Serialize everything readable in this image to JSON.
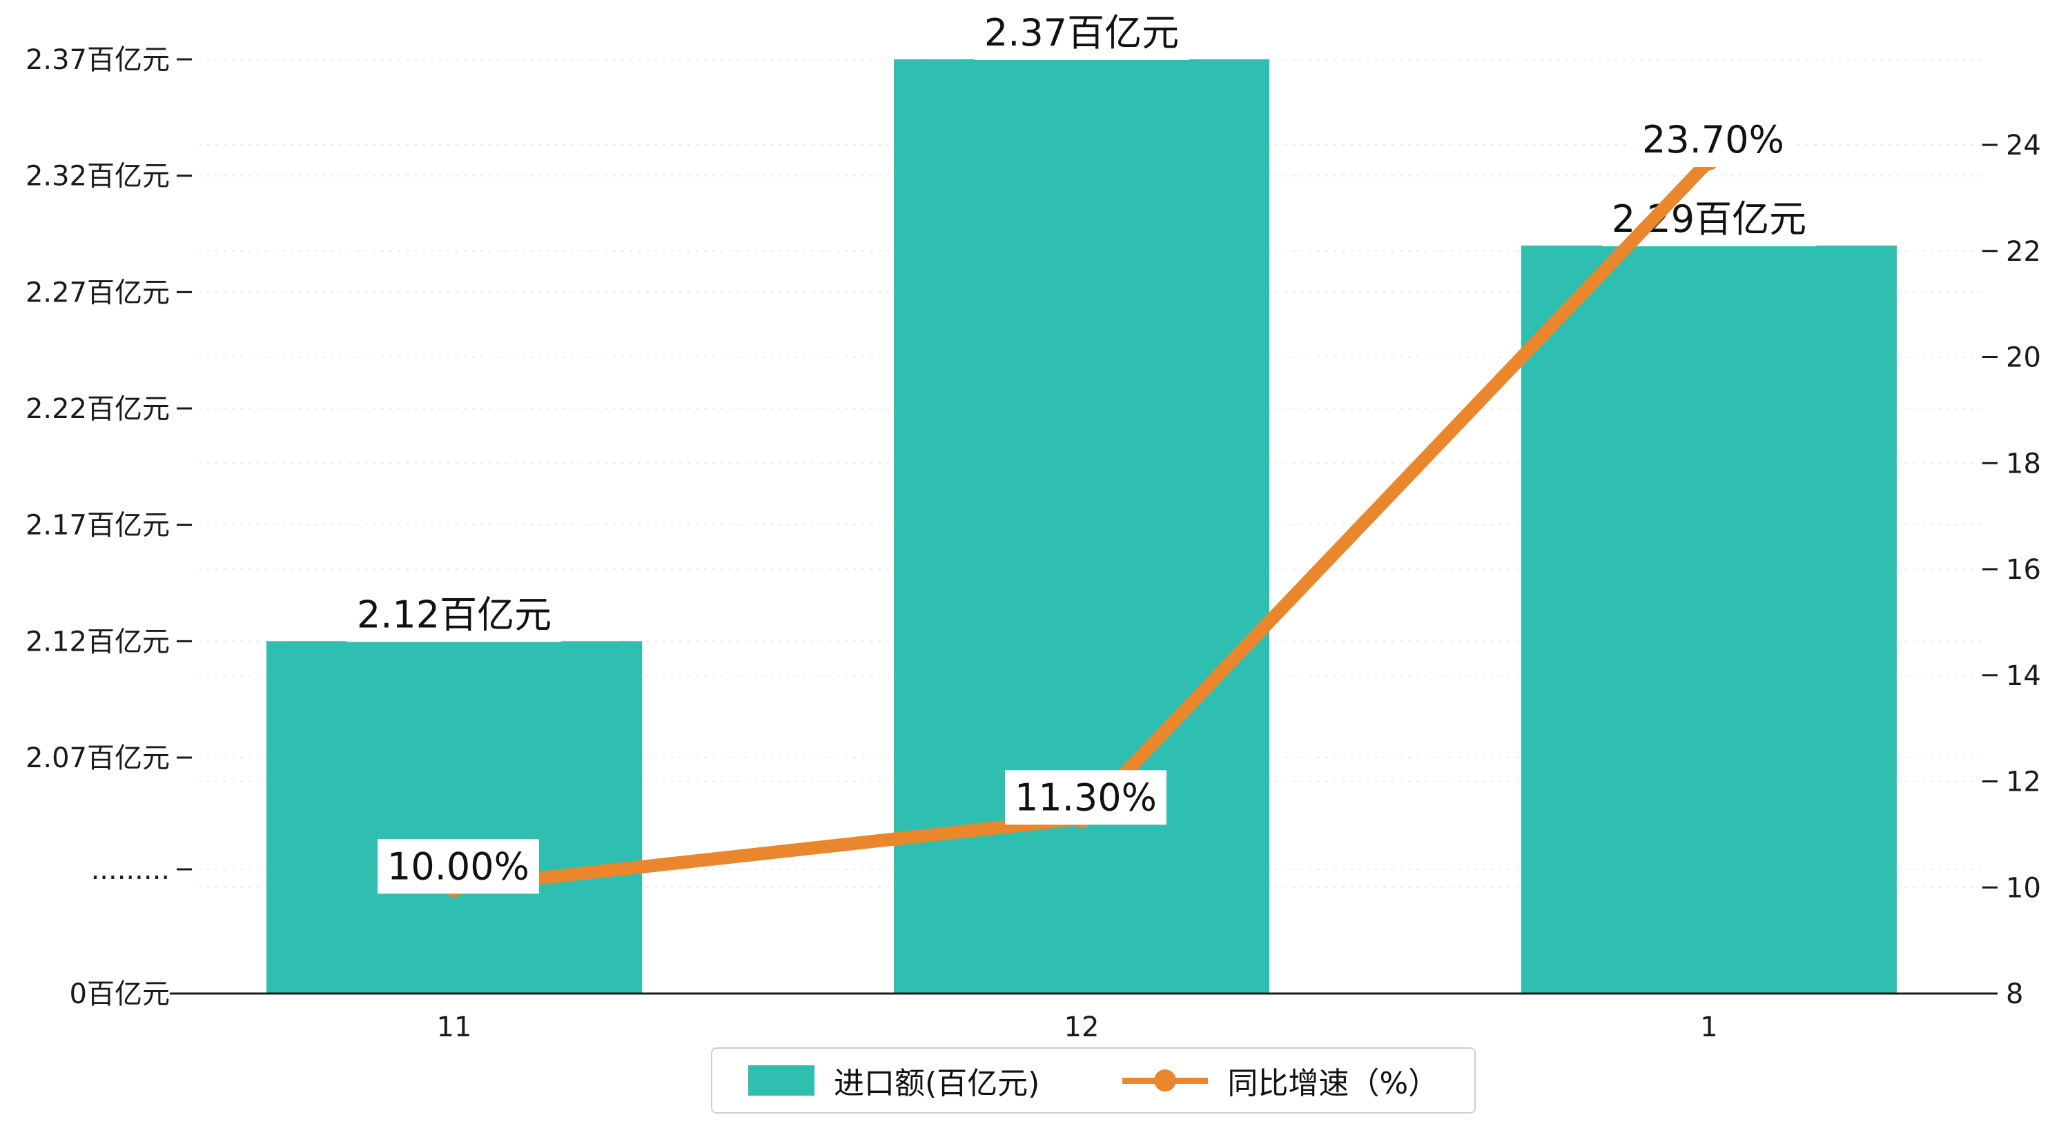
{
  "chart_data": {
    "type": "bar",
    "subtype": "bar-line-combo",
    "categories": [
      "11",
      "12",
      "1"
    ],
    "series": [
      {
        "name": "进口额(百亿元)",
        "type": "bar",
        "yaxis": "left",
        "values": [
          2.12,
          2.37,
          2.29
        ],
        "data_labels": [
          "2.12百亿元",
          "2.37百亿元",
          "2.29百亿元"
        ],
        "color": "#2fbfb0"
      },
      {
        "name": "同比增速（%）",
        "type": "line",
        "yaxis": "right",
        "values": [
          10.0,
          11.3,
          23.7
        ],
        "data_labels": [
          "10.00%",
          "11.30%",
          "23.70%"
        ],
        "color": "#ea862c"
      }
    ],
    "left_axis": {
      "tick_labels": [
        "0百亿元",
        ".........",
        "2.07百亿元",
        "2.12百亿元",
        "2.17百亿元",
        "2.22百亿元",
        "2.27百亿元",
        "2.32百亿元",
        "2.37百亿元"
      ],
      "tick_values": [
        0,
        null,
        2.07,
        2.12,
        2.17,
        2.22,
        2.27,
        2.32,
        2.37
      ],
      "has_break": true
    },
    "right_axis": {
      "tick_labels": [
        "8",
        "10",
        "12",
        "14",
        "16",
        "18",
        "20",
        "22",
        "24"
      ],
      "min": 8,
      "max": 24,
      "step": 2
    },
    "legend": {
      "position": "bottom",
      "items": [
        "进口额(百亿元)",
        "同比增速（%）"
      ]
    },
    "grid": true,
    "background": "#ffffff"
  },
  "colors": {
    "bar": "#2fbfb0",
    "line": "#ea862c",
    "grid": "#ececec",
    "axis": "#1a1a1a",
    "label_bg": "#ffffff",
    "legend_border": "#cfcfcf"
  }
}
